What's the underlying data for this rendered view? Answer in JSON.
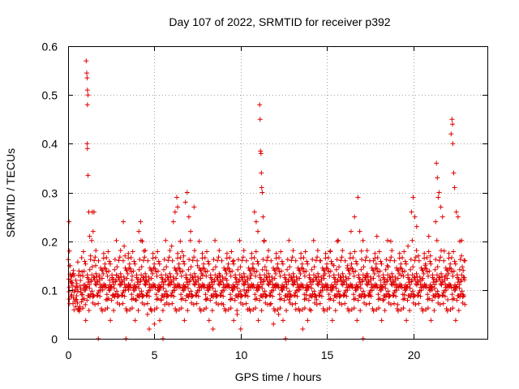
{
  "chart_data": {
    "type": "scatter",
    "title": "Day 107 of 2022, SRMTID for receiver p392",
    "xlabel": "GPS time / hours",
    "ylabel": "SRMTID / TECUs",
    "xlim": [
      0,
      24.3
    ],
    "ylim": [
      0,
      0.6
    ],
    "xticks": [
      0,
      5,
      10,
      15,
      20
    ],
    "xtick_labels": [
      "0",
      "5",
      "10",
      "15",
      "20"
    ],
    "yticks": [
      0,
      0.1,
      0.2,
      0.3,
      0.4,
      0.5,
      0.6
    ],
    "ytick_labels": [
      "0",
      "0.1",
      "0.2",
      "0.3",
      "0.4",
      "0.5",
      "0.6"
    ],
    "grid": true,
    "marker": "+",
    "color": "#e00000",
    "x_range_data": [
      0,
      23
    ],
    "baseline": 0.105,
    "series": [
      {
        "name": "p392",
        "points": [
          [
            0.05,
            0.24
          ],
          [
            0.08,
            0.18
          ],
          [
            0.1,
            0.15
          ],
          [
            0.15,
            0.12
          ],
          [
            0.2,
            0.09
          ],
          [
            0.3,
            0.14
          ],
          [
            0.4,
            0.1
          ],
          [
            0.5,
            0.08
          ],
          [
            0.6,
            0.06
          ],
          [
            0.7,
            0.13
          ],
          [
            0.8,
            0.09
          ],
          [
            0.9,
            0.11
          ],
          [
            1.0,
            0.07
          ],
          [
            1.05,
            0.57
          ],
          [
            1.08,
            0.545
          ],
          [
            1.1,
            0.535
          ],
          [
            1.12,
            0.51
          ],
          [
            1.15,
            0.5
          ],
          [
            1.12,
            0.48
          ],
          [
            1.1,
            0.4
          ],
          [
            1.12,
            0.39
          ],
          [
            1.15,
            0.335
          ],
          [
            1.2,
            0.26
          ],
          [
            1.25,
            0.21
          ],
          [
            1.3,
            0.17
          ],
          [
            1.4,
            0.26
          ],
          [
            1.5,
            0.26
          ],
          [
            1.45,
            0.22
          ],
          [
            1.6,
            0.15
          ],
          [
            1.75,
            0.0
          ],
          [
            1.8,
            0.13
          ],
          [
            2.0,
            0.1
          ],
          [
            2.2,
            0.08
          ],
          [
            2.4,
            0.12
          ],
          [
            2.6,
            0.09
          ],
          [
            2.8,
            0.13
          ],
          [
            3.0,
            0.11
          ],
          [
            3.2,
            0.24
          ],
          [
            3.25,
            0.19
          ],
          [
            3.3,
            0.17
          ],
          [
            3.35,
            0.0
          ],
          [
            3.5,
            0.1
          ],
          [
            3.7,
            0.12
          ],
          [
            3.9,
            0.08
          ],
          [
            4.1,
            0.22
          ],
          [
            4.2,
            0.24
          ],
          [
            4.3,
            0.2
          ],
          [
            4.4,
            0.18
          ],
          [
            4.5,
            0.12
          ],
          [
            4.6,
            0.05
          ],
          [
            4.7,
            0.02
          ],
          [
            4.8,
            0.06
          ],
          [
            5.0,
            0.03
          ],
          [
            5.2,
            0.1
          ],
          [
            5.4,
            0.08
          ],
          [
            5.5,
            0.0
          ],
          [
            5.6,
            0.07
          ],
          [
            5.8,
            0.11
          ],
          [
            6.0,
            0.19
          ],
          [
            6.1,
            0.24
          ],
          [
            6.2,
            0.26
          ],
          [
            6.3,
            0.29
          ],
          [
            6.35,
            0.27
          ],
          [
            6.5,
            0.2
          ],
          [
            6.7,
            0.17
          ],
          [
            6.8,
            0.28
          ],
          [
            6.9,
            0.3
          ],
          [
            7.0,
            0.25
          ],
          [
            7.1,
            0.22
          ],
          [
            7.3,
            0.27
          ],
          [
            7.5,
            0.15
          ],
          [
            7.6,
            0.2
          ],
          [
            7.8,
            0.13
          ],
          [
            8.0,
            0.08
          ],
          [
            8.2,
            0.11
          ],
          [
            8.4,
            0.02
          ],
          [
            8.6,
            0.09
          ],
          [
            8.8,
            0.13
          ],
          [
            9.0,
            0.07
          ],
          [
            9.2,
            0.12
          ],
          [
            9.4,
            0.08
          ],
          [
            9.6,
            0.16
          ],
          [
            9.8,
            0.05
          ],
          [
            10.0,
            0.02
          ],
          [
            10.2,
            0.1
          ],
          [
            10.4,
            0.06
          ],
          [
            10.6,
            0.13
          ],
          [
            10.8,
            0.26
          ],
          [
            10.9,
            0.24
          ],
          [
            11.0,
            0.22
          ],
          [
            11.1,
            0.48
          ],
          [
            11.13,
            0.45
          ],
          [
            11.15,
            0.385
          ],
          [
            11.18,
            0.38
          ],
          [
            11.2,
            0.34
          ],
          [
            11.22,
            0.31
          ],
          [
            11.25,
            0.3
          ],
          [
            11.3,
            0.25
          ],
          [
            11.35,
            0.2
          ],
          [
            11.5,
            0.14
          ],
          [
            11.7,
            0.07
          ],
          [
            11.9,
            0.03
          ],
          [
            12.0,
            0.11
          ],
          [
            12.2,
            0.05
          ],
          [
            12.4,
            0.1
          ],
          [
            12.6,
            0.0
          ],
          [
            12.8,
            0.08
          ],
          [
            13.0,
            0.12
          ],
          [
            13.2,
            0.06
          ],
          [
            13.4,
            0.1
          ],
          [
            13.6,
            0.02
          ],
          [
            13.8,
            0.09
          ],
          [
            14.0,
            0.06
          ],
          [
            14.2,
            0.12
          ],
          [
            14.4,
            0.08
          ],
          [
            14.6,
            0.16
          ],
          [
            14.8,
            0.13
          ],
          [
            15.0,
            0.1
          ],
          [
            15.2,
            0.18
          ],
          [
            15.4,
            0.15
          ],
          [
            15.6,
            0.2
          ],
          [
            15.8,
            0.12
          ],
          [
            16.0,
            0.09
          ],
          [
            16.2,
            0.15
          ],
          [
            16.4,
            0.22
          ],
          [
            16.6,
            0.25
          ],
          [
            16.8,
            0.29
          ],
          [
            16.9,
            0.22
          ],
          [
            17.0,
            0.18
          ],
          [
            17.1,
            0.0
          ],
          [
            17.3,
            0.13
          ],
          [
            17.5,
            0.09
          ],
          [
            17.7,
            0.16
          ],
          [
            17.9,
            0.21
          ],
          [
            18.1,
            0.12
          ],
          [
            18.3,
            0.08
          ],
          [
            18.5,
            0.15
          ],
          [
            18.7,
            0.2
          ],
          [
            18.9,
            0.11
          ],
          [
            19.1,
            0.07
          ],
          [
            19.3,
            0.13
          ],
          [
            19.5,
            0.09
          ],
          [
            19.7,
            0.19
          ],
          [
            19.9,
            0.26
          ],
          [
            20.0,
            0.29
          ],
          [
            20.1,
            0.25
          ],
          [
            20.2,
            0.23
          ],
          [
            20.3,
            0.17
          ],
          [
            20.5,
            0.12
          ],
          [
            20.7,
            0.15
          ],
          [
            20.9,
            0.21
          ],
          [
            21.0,
            0.17
          ],
          [
            21.1,
            0.1
          ],
          [
            21.3,
            0.24
          ],
          [
            21.35,
            0.36
          ],
          [
            21.4,
            0.33
          ],
          [
            21.45,
            0.29
          ],
          [
            21.5,
            0.3
          ],
          [
            21.6,
            0.27
          ],
          [
            21.7,
            0.25
          ],
          [
            21.8,
            0.18
          ],
          [
            21.9,
            0.13
          ],
          [
            22.0,
            0.08
          ],
          [
            22.1,
            0.11
          ],
          [
            22.2,
            0.42
          ],
          [
            22.25,
            0.45
          ],
          [
            22.28,
            0.44
          ],
          [
            22.3,
            0.4
          ],
          [
            22.35,
            0.34
          ],
          [
            22.4,
            0.31
          ],
          [
            22.5,
            0.26
          ],
          [
            22.6,
            0.25
          ],
          [
            22.7,
            0.2
          ],
          [
            22.8,
            0.17
          ],
          [
            22.9,
            0.14
          ],
          [
            23.0,
            0.16
          ]
        ]
      }
    ]
  }
}
